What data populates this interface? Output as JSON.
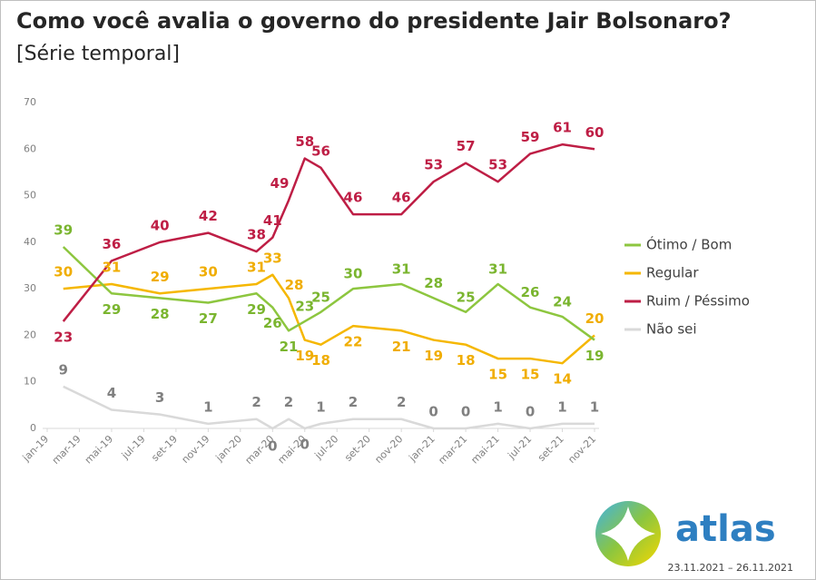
{
  "chart_data": {
    "type": "line",
    "title": "Como você avalia o governo do presidente Jair Bolsonaro?",
    "subtitle": "[Série temporal]",
    "x": [
      "2019-02",
      "2019-05",
      "2019-08",
      "2019-11",
      "2020-02",
      "2020-03",
      "2020-04",
      "2020-05",
      "2020-06",
      "2020-08",
      "2020-11",
      "2021-01",
      "2021-03",
      "2021-05",
      "2021-07",
      "2021-09",
      "2021-11"
    ],
    "xticks": [
      {
        "value": "2019-01",
        "label": "jan-19"
      },
      {
        "value": "2019-03",
        "label": "mar-19"
      },
      {
        "value": "2019-05",
        "label": "mai-19"
      },
      {
        "value": "2019-07",
        "label": "jul-19"
      },
      {
        "value": "2019-09",
        "label": "set-19"
      },
      {
        "value": "2019-11",
        "label": "nov-19"
      },
      {
        "value": "2020-01",
        "label": "jan-20"
      },
      {
        "value": "2020-03",
        "label": "mar-20"
      },
      {
        "value": "2020-05",
        "label": "mai-20"
      },
      {
        "value": "2020-07",
        "label": "jul-20"
      },
      {
        "value": "2020-09",
        "label": "set-20"
      },
      {
        "value": "2020-11",
        "label": "nov-20"
      },
      {
        "value": "2021-01",
        "label": "jan-21"
      },
      {
        "value": "2021-03",
        "label": "mar-21"
      },
      {
        "value": "2021-05",
        "label": "mai-21"
      },
      {
        "value": "2021-07",
        "label": "jul-21"
      },
      {
        "value": "2021-09",
        "label": "set-21"
      },
      {
        "value": "2021-11",
        "label": "nov-21"
      }
    ],
    "ylim": [
      0,
      70
    ],
    "yticks": [
      0,
      10,
      20,
      30,
      40,
      50,
      60,
      70
    ],
    "grid": false,
    "legend": "right",
    "series": [
      {
        "name": "Ótimo / Bom",
        "color": "#8dc63f",
        "label_color": "#7ab52f",
        "values": [
          39,
          29,
          28,
          27,
          29,
          26,
          21,
          23,
          25,
          30,
          31,
          28,
          25,
          31,
          26,
          24,
          19
        ]
      },
      {
        "name": "Regular",
        "color": "#f5b700",
        "label_color": "#f0ad00",
        "values": [
          30,
          31,
          29,
          30,
          31,
          33,
          28,
          19,
          18,
          22,
          21,
          19,
          18,
          15,
          15,
          14,
          20
        ]
      },
      {
        "name": "Ruim / Péssimo",
        "color": "#be1e45",
        "label_color": "#be1e45",
        "values": [
          23,
          36,
          40,
          42,
          38,
          41,
          49,
          58,
          56,
          46,
          46,
          53,
          57,
          53,
          59,
          61,
          60
        ]
      },
      {
        "name": "Não sei",
        "color": "#d9d9d9",
        "label_color": "#808080",
        "values": [
          9,
          4,
          3,
          1,
          2,
          0,
          2,
          0,
          1,
          2,
          2,
          0,
          0,
          1,
          0,
          1,
          1
        ]
      }
    ]
  },
  "footer": {
    "brand": "atlas",
    "dates": "23.11.2021 – 26.11.2021"
  }
}
